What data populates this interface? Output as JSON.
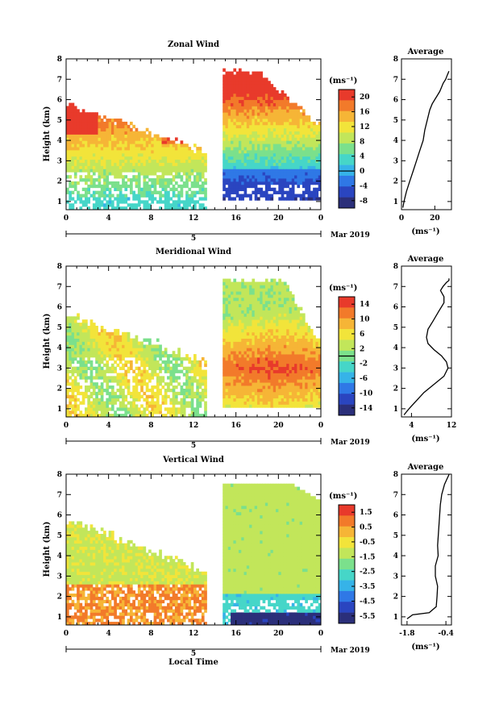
{
  "figure": {
    "xlabel": "Local Time",
    "date_label": "Mar 2019",
    "day_label": "5",
    "unit_label": "(ms⁻¹)"
  },
  "chart_data": [
    {
      "type": "heatmap",
      "title": "Zonal Wind",
      "ylabel": "Height (km)",
      "xlabel": "",
      "xlim": [
        0,
        24
      ],
      "ylim": [
        0.6,
        8
      ],
      "x_ticks": [
        "0",
        "4",
        "8",
        "12",
        "16",
        "20",
        "0"
      ],
      "y_ticks": [
        "1",
        "2",
        "3",
        "4",
        "5",
        "6",
        "7",
        "8"
      ],
      "colorbar": {
        "label": "(ms⁻¹)",
        "ticks": [
          "20",
          "16",
          "12",
          "8",
          "4",
          "0",
          "-4",
          "-8"
        ],
        "range": [
          -10,
          22
        ]
      },
      "colors": [
        "#2b2f7a",
        "#2a45c0",
        "#2f78e6",
        "#36b3e8",
        "#46d6c8",
        "#7be08c",
        "#c2e65a",
        "#f2e43a",
        "#f6b536",
        "#f27a2a",
        "#e83a2b"
      ],
      "zero_contour": true,
      "data_gap_hours": [
        13.2,
        14.8
      ]
    },
    {
      "type": "heatmap",
      "title": "Meridional Wind",
      "ylabel": "Height (km)",
      "xlabel": "",
      "xlim": [
        0,
        24
      ],
      "ylim": [
        0.6,
        8
      ],
      "x_ticks": [
        "0",
        "4",
        "8",
        "12",
        "16",
        "20",
        "0"
      ],
      "y_ticks": [
        "1",
        "2",
        "3",
        "4",
        "5",
        "6",
        "7",
        "8"
      ],
      "colorbar": {
        "label": "(ms⁻¹)",
        "ticks": [
          "14",
          "10",
          "6",
          "2",
          "-2",
          "-6",
          "-10",
          "-14"
        ],
        "range": [
          -16,
          16
        ]
      },
      "colors": [
        "#2b2f7a",
        "#2a45c0",
        "#2f78e6",
        "#36b3e8",
        "#46d6c8",
        "#7be08c",
        "#c2e65a",
        "#f2e43a",
        "#f6b536",
        "#f27a2a",
        "#e83a2b"
      ],
      "zero_contour": true,
      "data_gap_hours": [
        13.2,
        14.8
      ]
    },
    {
      "type": "heatmap",
      "title": "Vertical Wind",
      "ylabel": "Height (km)",
      "xlabel": "Local Time",
      "xlim": [
        0,
        24
      ],
      "ylim": [
        0.6,
        8
      ],
      "x_ticks": [
        "0",
        "4",
        "8",
        "12",
        "16",
        "20",
        "0"
      ],
      "y_ticks": [
        "1",
        "2",
        "3",
        "4",
        "5",
        "6",
        "7",
        "8"
      ],
      "colorbar": {
        "label": "(ms⁻¹)",
        "ticks": [
          "1.5",
          "0.5",
          "-0.5",
          "-1.5",
          "-2.5",
          "-3.5",
          "-4.5",
          "-5.5"
        ],
        "range": [
          -6,
          2
        ]
      },
      "colors": [
        "#2b2f7a",
        "#2a45c0",
        "#2f78e6",
        "#36b3e8",
        "#46d6c8",
        "#7be08c",
        "#c2e65a",
        "#f2e43a",
        "#f6b536",
        "#f27a2a",
        "#e83a2b"
      ],
      "zero_contour": false,
      "data_gap_hours": [
        13.2,
        14.8
      ]
    },
    {
      "type": "line",
      "title": "Average",
      "xlabel": "(ms⁻¹)",
      "ylabel": "",
      "xlim": [
        0,
        30
      ],
      "ylim": [
        0.6,
        8
      ],
      "x_ticks": [
        "0",
        "20"
      ],
      "x_tick_values": [
        0,
        20
      ],
      "y_ticks": [
        "1",
        "2",
        "3",
        "4",
        "5",
        "6",
        "7",
        "8"
      ],
      "x": [
        0.8,
        1.5,
        3,
        5,
        7,
        9,
        11,
        13,
        14,
        15.5,
        17,
        18.5,
        20,
        21.5,
        23,
        24,
        25,
        26.5,
        27.5,
        28.5
      ],
      "y": [
        0.7,
        1.0,
        1.5,
        2.0,
        2.5,
        3.0,
        3.5,
        4.0,
        4.5,
        5.0,
        5.5,
        5.8,
        6.0,
        6.2,
        6.4,
        6.6,
        6.8,
        7.0,
        7.2,
        7.4
      ]
    },
    {
      "type": "line",
      "title": "Average",
      "xlabel": "(ms⁻¹)",
      "ylabel": "",
      "xlim": [
        2,
        12
      ],
      "ylim": [
        0.6,
        8
      ],
      "x_ticks": [
        "4",
        "12"
      ],
      "x_tick_values": [
        4,
        12
      ],
      "y_ticks": [
        "1",
        "2",
        "3",
        "4",
        "5",
        "6",
        "7",
        "8"
      ],
      "x": [
        2.5,
        3.5,
        5,
        6.5,
        8.5,
        10.5,
        11.3,
        11,
        10,
        8.5,
        7.3,
        7,
        7.3,
        8.3,
        9.5,
        10.5,
        10.5,
        9.8,
        10.3,
        11,
        11.5,
        11.5
      ],
      "y": [
        0.7,
        1.0,
        1.4,
        1.8,
        2.2,
        2.6,
        3.0,
        3.3,
        3.6,
        3.9,
        4.2,
        4.5,
        4.9,
        5.3,
        5.8,
        6.2,
        6.5,
        6.8,
        7.0,
        7.2,
        7.3,
        7.4
      ]
    },
    {
      "type": "line",
      "title": "Average",
      "xlabel": "(ms⁻¹)",
      "ylabel": "",
      "xlim": [
        -2.0,
        -0.2
      ],
      "ylim": [
        0.6,
        8
      ],
      "x_ticks": [
        "-1.8",
        "-0.4"
      ],
      "x_tick_values": [
        -1.8,
        -0.4
      ],
      "y_ticks": [
        "1",
        "2",
        "3",
        "4",
        "5",
        "6",
        "7",
        "8"
      ],
      "x": [
        -1.8,
        -1.6,
        -1.0,
        -0.75,
        -0.72,
        -0.7,
        -0.78,
        -0.78,
        -0.68,
        -0.7,
        -0.65,
        -0.6,
        -0.55,
        -0.45,
        -0.35,
        -0.28
      ],
      "y": [
        0.9,
        1.1,
        1.2,
        1.5,
        2.0,
        2.5,
        3.0,
        3.5,
        4.0,
        4.5,
        5.5,
        6.5,
        7.0,
        7.5,
        7.8,
        8.0
      ]
    }
  ]
}
